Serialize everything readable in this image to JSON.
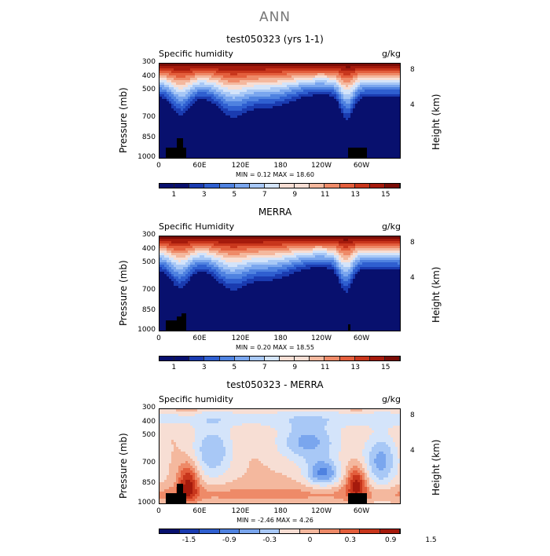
{
  "page": {
    "title": "ANN"
  },
  "chart_data": [
    {
      "type": "heatmap",
      "title": "test050323 (yrs 1-1)",
      "subtitle_left": "Specific humidity",
      "units": "g/kg",
      "ylabel": "Pressure (mb)",
      "ylabel_right": "Height (km)",
      "y_ticks": [
        "300",
        "400",
        "500",
        "700",
        "850",
        "1000"
      ],
      "y_right_ticks": [
        "8",
        "4"
      ],
      "x_ticks": [
        "0",
        "60E",
        "120E",
        "180",
        "120W",
        "60W"
      ],
      "min_max": "MIN = 0.12 MAX = 18.60",
      "colorbar_labels": [
        "1",
        "3",
        "5",
        "7",
        "9",
        "11",
        "13",
        "15"
      ],
      "colormap": "blue-white-red",
      "variant": "model"
    },
    {
      "type": "heatmap",
      "title": "MERRA",
      "subtitle_left": "Specific Humidity",
      "units": "g/kg",
      "ylabel": "Pressure (mb)",
      "ylabel_right": "Height (km)",
      "y_ticks": [
        "300",
        "400",
        "500",
        "700",
        "850",
        "1000"
      ],
      "y_right_ticks": [
        "8",
        "4"
      ],
      "x_ticks": [
        "0",
        "60E",
        "120E",
        "180",
        "120W",
        "60W"
      ],
      "min_max": "MIN = 0.20 MAX = 18.55",
      "colorbar_labels": [
        "1",
        "3",
        "5",
        "7",
        "9",
        "11",
        "13",
        "15"
      ],
      "colormap": "blue-white-red",
      "variant": "obs"
    },
    {
      "type": "heatmap",
      "title": "test050323 - MERRA",
      "subtitle_left": "Specific humidity",
      "units": "g/kg",
      "ylabel": "Pressure (mb)",
      "ylabel_right": "Height (km)",
      "y_ticks": [
        "300",
        "400",
        "500",
        "700",
        "850",
        "1000"
      ],
      "y_right_ticks": [
        "8",
        "4"
      ],
      "x_ticks": [
        "0",
        "60E",
        "120E",
        "180",
        "120W",
        "60W"
      ],
      "min_max": "MIN = -2.46 MAX = 4.26",
      "colorbar_labels": [
        "-1.5",
        "-0.9",
        "-0.3",
        "0",
        "0.3",
        "0.9",
        "1.5"
      ],
      "colormap": "blue-white-red",
      "variant": "diff"
    }
  ],
  "colors": {
    "ramp": [
      "#08106e",
      "#1a3bb0",
      "#2f5fd0",
      "#4f82e0",
      "#7aa6ee",
      "#a8c8f6",
      "#d4e4fa",
      "#f7ded4",
      "#f4b89e",
      "#ee8a68",
      "#e35e3c",
      "#c8361c",
      "#a51a0c",
      "#7a0c06"
    ],
    "terrain": "#000000"
  }
}
